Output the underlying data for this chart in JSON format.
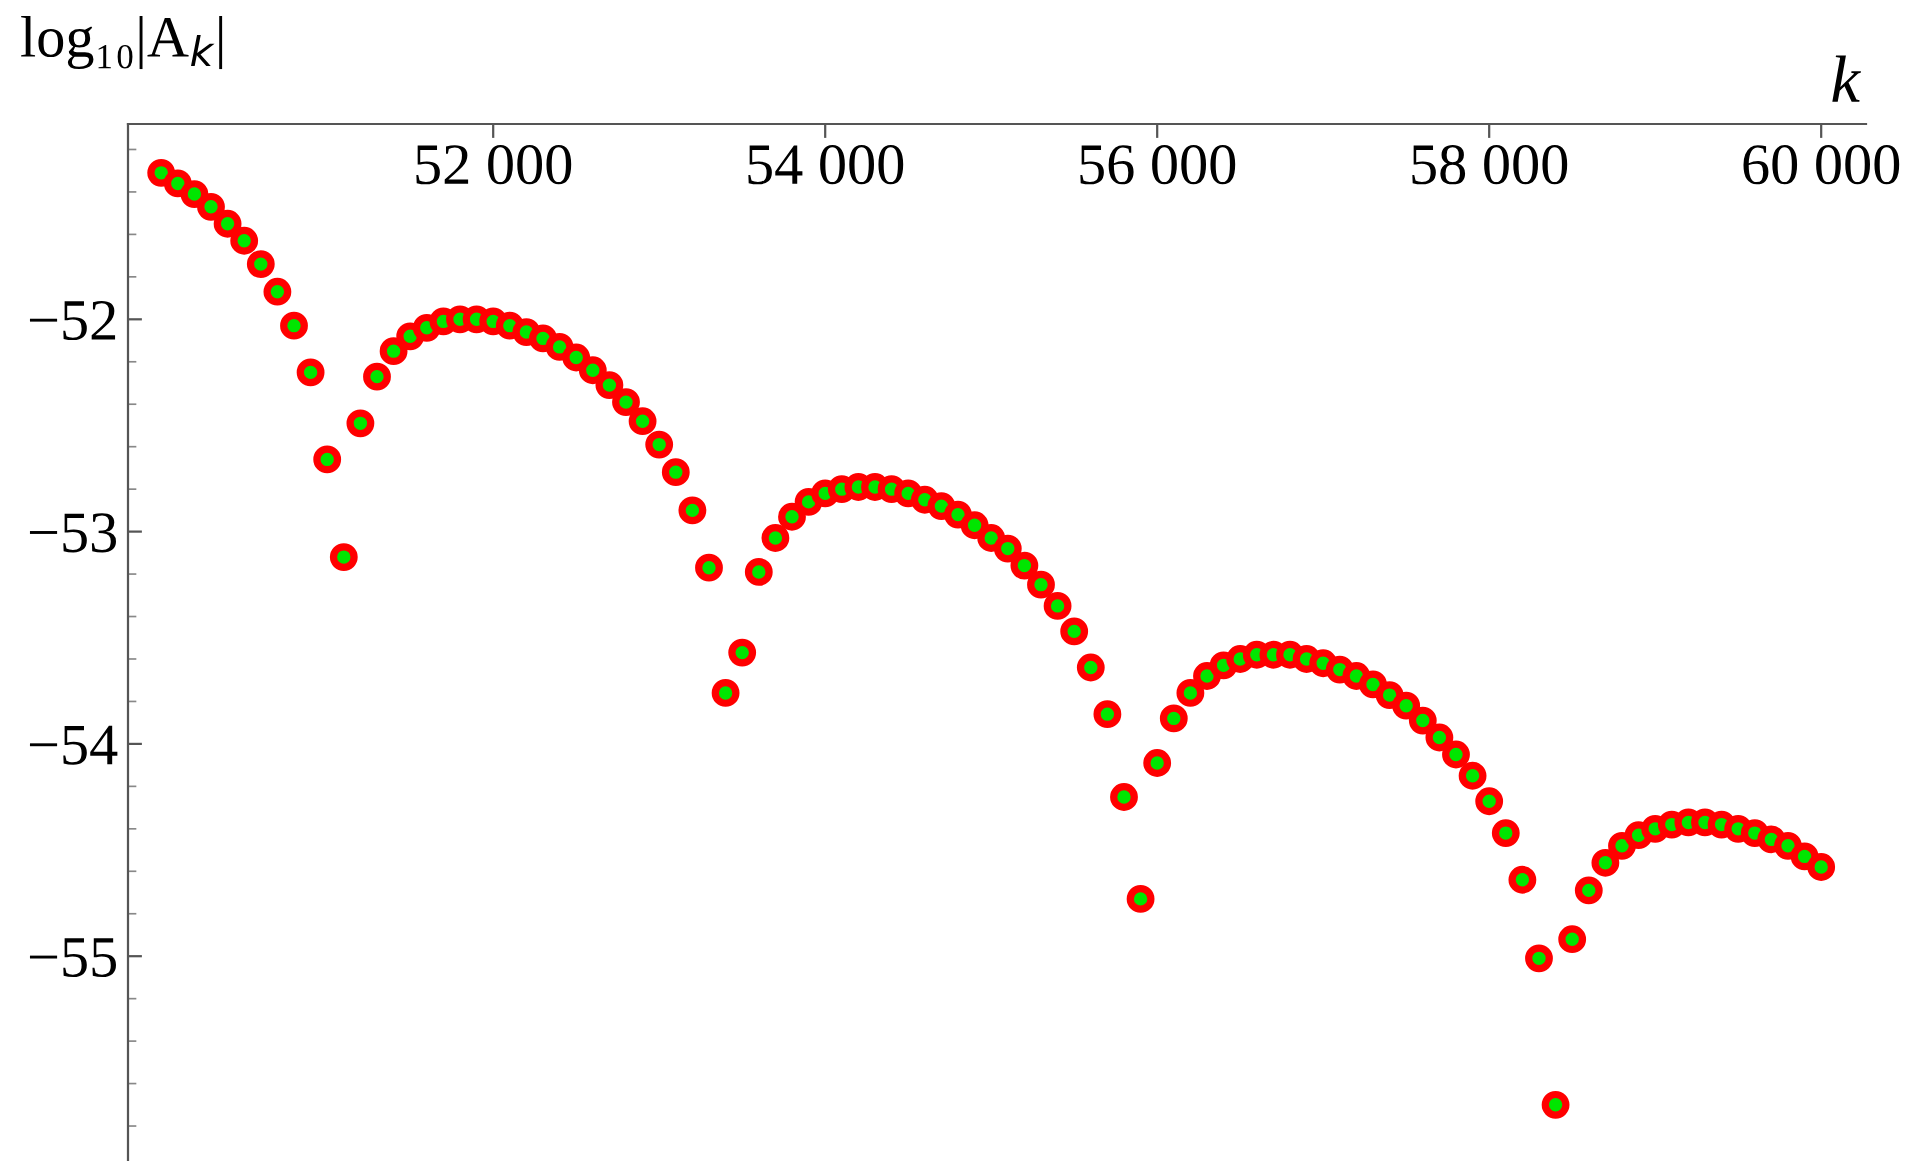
{
  "chart_data": {
    "type": "scatter",
    "xlabel": "k",
    "ylabel": "log₁₀|A$_{k}$|",
    "series": [
      {
        "color": "#ff0000",
        "x": [
          50000,
          50100,
          50200,
          50300,
          50400,
          50500,
          50600,
          50700,
          50800,
          50900,
          51000,
          51100,
          51200,
          51300,
          51400,
          51500,
          51600,
          51700,
          51800,
          51900,
          52000,
          52100,
          52200,
          52300,
          52400,
          52500,
          52600,
          52700,
          52800,
          52900,
          53000,
          53100,
          53200,
          53300,
          53400,
          53500,
          53600,
          53700,
          53800,
          53900,
          54000,
          54100,
          54200,
          54300,
          54400,
          54500,
          54600,
          54700,
          54800,
          54900,
          55000,
          55100,
          55200,
          55300,
          55400,
          55500,
          55600,
          55700,
          55800,
          55900,
          56000,
          56100,
          56200,
          56300,
          56400,
          56500,
          56600,
          56700,
          56800,
          56900,
          57000,
          57100,
          57200,
          57300,
          57400,
          57500,
          57600,
          57700,
          57800,
          57900,
          58000,
          58100,
          58200,
          58300,
          58400,
          58500,
          58600,
          58700,
          58800,
          58900,
          59000,
          59100,
          59200,
          59300,
          59400,
          59500,
          59600,
          59700,
          59800,
          59900,
          60000
        ],
        "values": [
          -51.31,
          -51.36,
          -51.41,
          -51.47,
          -51.55,
          -51.63,
          -51.74,
          -51.87,
          -52.03,
          -52.25,
          -52.66,
          -53.12,
          -52.49,
          -52.27,
          -52.15,
          -52.08,
          -52.04,
          -52.01,
          -52.0,
          -52.0,
          -52.01,
          -52.03,
          -52.06,
          -52.09,
          -52.13,
          -52.18,
          -52.24,
          -52.31,
          -52.39,
          -52.48,
          -52.59,
          -52.72,
          -52.9,
          -53.17,
          -53.76,
          -53.57,
          -53.19,
          -53.03,
          -52.93,
          -52.86,
          -52.82,
          -52.8,
          -52.79,
          -52.79,
          -52.8,
          -52.82,
          -52.85,
          -52.88,
          -52.92,
          -52.97,
          -53.03,
          -53.08,
          -53.16,
          -53.25,
          -53.35,
          -53.47,
          -53.64,
          -53.86,
          -54.25,
          -54.73,
          -54.09,
          -53.88,
          -53.76,
          -53.68,
          -53.63,
          -53.6,
          -53.58,
          -53.58,
          -53.58,
          -53.6,
          -53.62,
          -53.65,
          -53.68,
          -53.72,
          -53.77,
          -53.82,
          -53.89,
          -53.97,
          -54.05,
          -54.15,
          -54.27,
          -54.42,
          -54.64,
          -55.01,
          -55.7,
          -54.92,
          -54.69,
          -54.56,
          -54.48,
          -54.43,
          -54.4,
          -54.38,
          -54.37,
          -54.37,
          -54.38,
          -54.4,
          -54.42,
          -54.45,
          -54.48,
          -54.53,
          -54.58
        ]
      }
    ],
    "xlim": [
      49800,
      60270
    ],
    "ylim": [
      -55.96,
      -51.08
    ],
    "xticks": [
      {
        "value": 52000,
        "label": "52 000"
      },
      {
        "value": 54000,
        "label": "54 000"
      },
      {
        "value": 56000,
        "label": "56 000"
      },
      {
        "value": 58000,
        "label": "58 000"
      },
      {
        "value": 60000,
        "label": "60 000"
      }
    ],
    "yticks": [
      {
        "value": -52,
        "label": "−52"
      },
      {
        "value": -53,
        "label": "−53"
      },
      {
        "value": -54,
        "label": "−54"
      },
      {
        "value": -55,
        "label": "−55"
      }
    ],
    "marker": "circle",
    "grid": false,
    "legend": false
  }
}
